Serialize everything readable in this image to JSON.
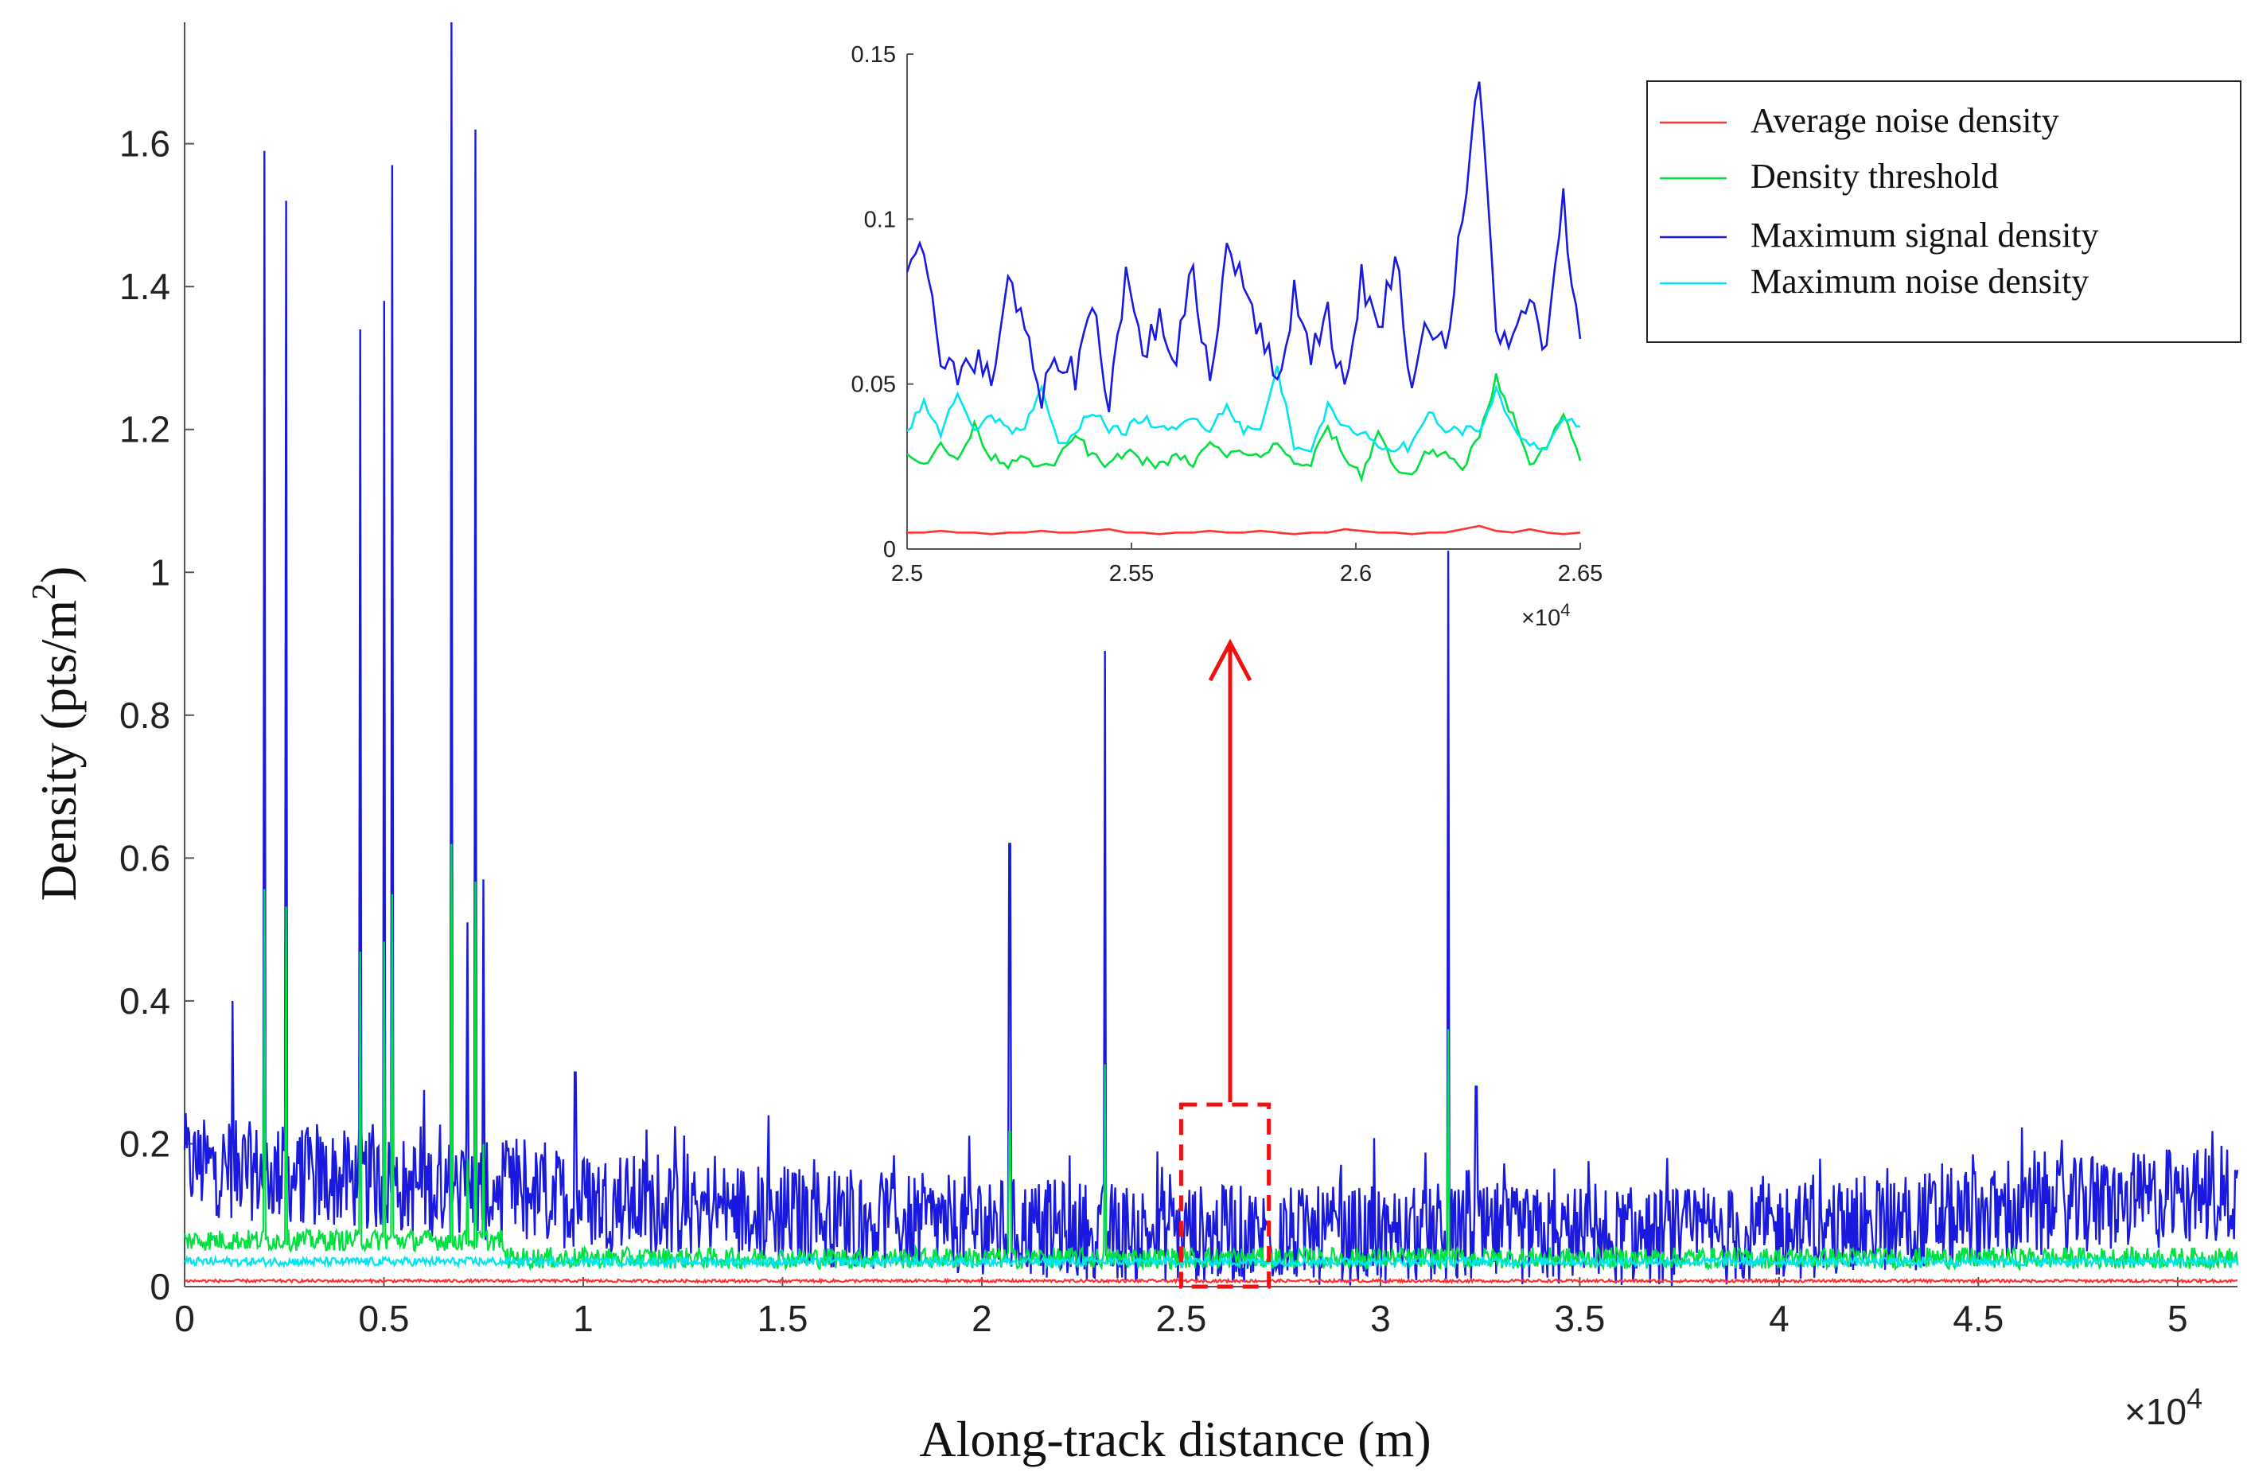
{
  "chart_data": [
    {
      "type": "line",
      "name": "main",
      "xlabel": "Along-track distance (m)",
      "ylabel_main": "Density (pts/m",
      "ylabel_sup": "2",
      "ylabel_close": ")",
      "x_multiplier": {
        "prefix": "×10",
        "exp": "4"
      },
      "xlim": [
        0,
        51500
      ],
      "ylim": [
        0,
        1.77
      ],
      "x_ticks": [
        0,
        5000,
        10000,
        15000,
        20000,
        25000,
        30000,
        35000,
        40000,
        45000,
        50000
      ],
      "x_tick_labels": [
        "0",
        "0.5",
        "1",
        "1.5",
        "2",
        "2.5",
        "3",
        "3.5",
        "4",
        "4.5",
        "5"
      ],
      "y_ticks": [
        0,
        0.2,
        0.4,
        0.6,
        0.8,
        1.0,
        1.2,
        1.4,
        1.6
      ],
      "y_tick_labels": [
        "0",
        "0.2",
        "0.4",
        "0.6",
        "0.8",
        "1",
        "1.2",
        "1.4",
        "1.6"
      ],
      "series": [
        {
          "name": "Average noise density",
          "color": "#ff3333",
          "baseline": 0.008,
          "spread": 0.002
        },
        {
          "name": "Density threshold",
          "color": "#00e040",
          "baseline": 0.045,
          "spread": 0.015
        },
        {
          "name": "Maximum signal density",
          "color": "#1a1adf",
          "baseline": 0.12,
          "spread": 0.07,
          "peaks": [
            [
              1200,
              0.4
            ],
            [
              2000,
              1.59
            ],
            [
              2550,
              1.52
            ],
            [
              4400,
              1.34
            ],
            [
              5000,
              1.38
            ],
            [
              5200,
              1.57
            ],
            [
              6700,
              1.77
            ],
            [
              7100,
              0.51
            ],
            [
              7300,
              1.62
            ],
            [
              7500,
              0.57
            ],
            [
              9800,
              0.3
            ],
            [
              20700,
              0.62
            ],
            [
              23100,
              0.89
            ],
            [
              31700,
              1.03
            ],
            [
              32400,
              0.28
            ]
          ]
        },
        {
          "name": "Maximum noise density",
          "color": "#00e6ee",
          "baseline": 0.035,
          "spread": 0.006
        }
      ],
      "zoom_box": {
        "x": [
          25000,
          27200
        ],
        "y": [
          0,
          0.255
        ]
      }
    },
    {
      "type": "line",
      "name": "inset",
      "xlim": [
        25000,
        26500
      ],
      "ylim": [
        0,
        0.15
      ],
      "x_multiplier": {
        "prefix": "×10",
        "exp": "4"
      },
      "x_tick_labels": [
        "2.5",
        "2.55",
        "2.6",
        "2.65"
      ],
      "x_ticks": [
        25000,
        25500,
        26000,
        26500
      ],
      "y_tick_labels": [
        "0",
        "0.05",
        "0.1",
        "0.15"
      ],
      "y_ticks": [
        0,
        0.05,
        0.1,
        0.15
      ],
      "series": [
        {
          "name": "Average noise density",
          "color": "#ff3333",
          "values": [
            0.005,
            0.005,
            0.0055,
            0.005,
            0.005,
            0.0045,
            0.005,
            0.005,
            0.0055,
            0.005,
            0.005,
            0.0055,
            0.006,
            0.005,
            0.005,
            0.0045,
            0.005,
            0.005,
            0.0055,
            0.005,
            0.005,
            0.0055,
            0.005,
            0.0045,
            0.005,
            0.005,
            0.006,
            0.0055,
            0.005,
            0.005,
            0.0045,
            0.005,
            0.005,
            0.006,
            0.007,
            0.0055,
            0.005,
            0.006,
            0.005,
            0.0045,
            0.005
          ]
        },
        {
          "name": "Density threshold",
          "color": "#00e040",
          "values": [
            0.03,
            0.026,
            0.031,
            0.027,
            0.037,
            0.028,
            0.026,
            0.029,
            0.024,
            0.027,
            0.035,
            0.028,
            0.025,
            0.03,
            0.027,
            0.025,
            0.028,
            0.026,
            0.032,
            0.028,
            0.03,
            0.027,
            0.033,
            0.025,
            0.026,
            0.037,
            0.028,
            0.022,
            0.036,
            0.024,
            0.023,
            0.03,
            0.028,
            0.024,
            0.035,
            0.052,
            0.04,
            0.025,
            0.031,
            0.04,
            0.027
          ]
        },
        {
          "name": "Maximum signal density",
          "color": "#1a1adf",
          "values": [
            0.08,
            0.092,
            0.06,
            0.052,
            0.058,
            0.05,
            0.083,
            0.065,
            0.045,
            0.058,
            0.053,
            0.075,
            0.045,
            0.083,
            0.06,
            0.069,
            0.058,
            0.085,
            0.05,
            0.092,
            0.083,
            0.065,
            0.05,
            0.078,
            0.06,
            0.072,
            0.046,
            0.083,
            0.065,
            0.09,
            0.05,
            0.07,
            0.061,
            0.1,
            0.142,
            0.068,
            0.062,
            0.075,
            0.06,
            0.105,
            0.06
          ]
        },
        {
          "name": "Maximum noise density",
          "color": "#00e6ee",
          "values": [
            0.036,
            0.044,
            0.035,
            0.048,
            0.036,
            0.041,
            0.036,
            0.037,
            0.048,
            0.031,
            0.036,
            0.042,
            0.036,
            0.036,
            0.04,
            0.036,
            0.036,
            0.041,
            0.036,
            0.044,
            0.036,
            0.036,
            0.055,
            0.031,
            0.031,
            0.043,
            0.036,
            0.036,
            0.031,
            0.031,
            0.031,
            0.042,
            0.036,
            0.036,
            0.036,
            0.048,
            0.036,
            0.031,
            0.031,
            0.04,
            0.036
          ]
        }
      ]
    }
  ],
  "legend": {
    "items": [
      {
        "label": "Average noise density",
        "color": "#ff3333"
      },
      {
        "label": "Density threshold",
        "color": "#00e040"
      },
      {
        "label": "Maximum signal density",
        "color": "#1a1adf"
      },
      {
        "label": "Maximum noise density",
        "color": "#00e6ee"
      }
    ]
  },
  "annotation": {
    "color": "#ee1111"
  }
}
